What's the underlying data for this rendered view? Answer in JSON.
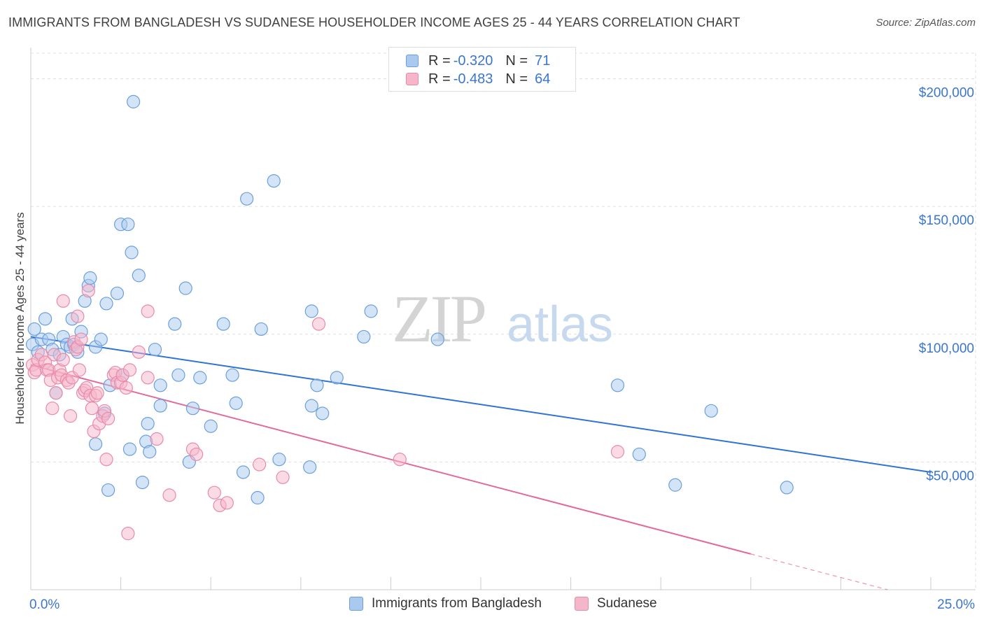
{
  "title": "IMMIGRANTS FROM BANGLADESH VS SUDANESE HOUSEHOLDER INCOME AGES 25 - 44 YEARS CORRELATION CHART",
  "source": "Source: ZipAtlas.com",
  "watermark": {
    "zip": "ZIP",
    "atlas": "atlas"
  },
  "colors": {
    "blue_fill": "#a9c9ef",
    "blue_stroke": "#6b9fdc",
    "blue_line": "#2f73d6",
    "pink_fill": "#f5b6ca",
    "pink_stroke": "#e98aab",
    "pink_line": "#e2699a",
    "tick_text": "#3a76d0",
    "grid": "#e0e0e0"
  },
  "legend_top": [
    {
      "r_label": "R =",
      "r_value": "-0.320",
      "n_label": "N =",
      "n_value": "71"
    },
    {
      "r_label": "R =",
      "r_value": "-0.483",
      "n_label": "N =",
      "n_value": "64"
    }
  ],
  "legend_bottom": [
    "Immigrants from Bangladesh",
    "Sudanese"
  ],
  "chart_data": {
    "type": "scatter",
    "title": "IMMIGRANTS FROM BANGLADESH VS SUDANESE HOUSEHOLDER INCOME AGES 25 - 44 YEARS CORRELATION CHART",
    "xlabel": "",
    "ylabel": "Householder Income Ages 25 - 44 years",
    "xlim": [
      0,
      25.0
    ],
    "ylim": [
      0,
      210000
    ],
    "x_tick_labels": [
      "0.0%",
      "25.0%"
    ],
    "y_ticks": [
      50000,
      100000,
      150000,
      200000
    ],
    "y_tick_labels": [
      "$50,000",
      "$100,000",
      "$150,000",
      "$200,000"
    ],
    "grid": true,
    "legend_position": "top-center",
    "series": [
      {
        "name": "Immigrants from Bangladesh",
        "r": -0.32,
        "n": 71,
        "trend": {
          "x": [
            0,
            25.0
          ],
          "y": [
            99000,
            46000
          ]
        },
        "points": [
          [
            0.05,
            96000
          ],
          [
            0.1,
            102000
          ],
          [
            0.2,
            93000
          ],
          [
            0.3,
            98000
          ],
          [
            0.4,
            106000
          ],
          [
            0.5,
            98000
          ],
          [
            0.6,
            94000
          ],
          [
            0.7,
            77000
          ],
          [
            0.8,
            92000
          ],
          [
            0.9,
            99000
          ],
          [
            1.0,
            96000
          ],
          [
            1.1,
            95000
          ],
          [
            1.15,
            106000
          ],
          [
            1.2,
            96000
          ],
          [
            1.3,
            93000
          ],
          [
            1.4,
            101000
          ],
          [
            1.5,
            113000
          ],
          [
            1.6,
            119000
          ],
          [
            1.65,
            122000
          ],
          [
            1.8,
            95000
          ],
          [
            1.8,
            57000
          ],
          [
            1.95,
            98000
          ],
          [
            2.05,
            69000
          ],
          [
            2.1,
            112000
          ],
          [
            2.15,
            39000
          ],
          [
            2.2,
            80000
          ],
          [
            2.4,
            116000
          ],
          [
            2.5,
            143000
          ],
          [
            2.55,
            84000
          ],
          [
            2.7,
            143000
          ],
          [
            2.75,
            55000
          ],
          [
            2.8,
            132000
          ],
          [
            2.85,
            191000
          ],
          [
            3.0,
            123000
          ],
          [
            3.1,
            42000
          ],
          [
            3.2,
            58000
          ],
          [
            3.25,
            65000
          ],
          [
            3.3,
            54000
          ],
          [
            3.45,
            94000
          ],
          [
            3.6,
            80000
          ],
          [
            3.6,
            72000
          ],
          [
            4.0,
            104000
          ],
          [
            4.1,
            84000
          ],
          [
            4.3,
            118000
          ],
          [
            4.4,
            50000
          ],
          [
            4.5,
            71000
          ],
          [
            4.7,
            83000
          ],
          [
            5.0,
            64000
          ],
          [
            5.35,
            104000
          ],
          [
            5.6,
            84000
          ],
          [
            5.7,
            73000
          ],
          [
            5.9,
            46000
          ],
          [
            6.0,
            153000
          ],
          [
            6.3,
            36000
          ],
          [
            6.4,
            102000
          ],
          [
            6.75,
            160000
          ],
          [
            6.9,
            51000
          ],
          [
            7.75,
            48000
          ],
          [
            7.8,
            109000
          ],
          [
            7.8,
            72000
          ],
          [
            7.95,
            80000
          ],
          [
            8.1,
            69000
          ],
          [
            8.5,
            83000
          ],
          [
            9.25,
            99000
          ],
          [
            9.45,
            109000
          ],
          [
            11.3,
            98000
          ],
          [
            16.3,
            80000
          ],
          [
            16.9,
            53000
          ],
          [
            17.9,
            41000
          ],
          [
            18.9,
            70000
          ],
          [
            21.0,
            40000
          ]
        ]
      },
      {
        "name": "Sudanese",
        "r": -0.483,
        "n": 64,
        "trend": {
          "x": [
            0,
            20.0
          ],
          "y": [
            88000,
            14000
          ]
        },
        "trend_dashed": {
          "x": [
            20.0,
            23.8
          ],
          "y": [
            14000,
            0
          ]
        },
        "points": [
          [
            0.05,
            88000
          ],
          [
            0.1,
            85000
          ],
          [
            0.15,
            86000
          ],
          [
            0.2,
            90000
          ],
          [
            0.3,
            92000
          ],
          [
            0.4,
            89000
          ],
          [
            0.45,
            86000
          ],
          [
            0.5,
            86000
          ],
          [
            0.55,
            82000
          ],
          [
            0.6,
            71000
          ],
          [
            0.65,
            92000
          ],
          [
            0.7,
            77000
          ],
          [
            0.75,
            83000
          ],
          [
            0.8,
            86000
          ],
          [
            0.85,
            84000
          ],
          [
            0.9,
            90000
          ],
          [
            0.9,
            113000
          ],
          [
            1.0,
            82000
          ],
          [
            1.05,
            81000
          ],
          [
            1.1,
            68000
          ],
          [
            1.15,
            83000
          ],
          [
            1.2,
            97000
          ],
          [
            1.25,
            94000
          ],
          [
            1.3,
            95000
          ],
          [
            1.3,
            107000
          ],
          [
            1.35,
            86000
          ],
          [
            1.4,
            98000
          ],
          [
            1.45,
            77000
          ],
          [
            1.5,
            78000
          ],
          [
            1.55,
            79000
          ],
          [
            1.6,
            117000
          ],
          [
            1.65,
            76000
          ],
          [
            1.7,
            71000
          ],
          [
            1.75,
            62000
          ],
          [
            1.8,
            76000
          ],
          [
            1.85,
            77000
          ],
          [
            1.9,
            65000
          ],
          [
            2.0,
            68000
          ],
          [
            2.05,
            70000
          ],
          [
            2.1,
            51000
          ],
          [
            2.15,
            67000
          ],
          [
            2.3,
            84000
          ],
          [
            2.35,
            85000
          ],
          [
            2.4,
            81000
          ],
          [
            2.5,
            81000
          ],
          [
            2.55,
            84000
          ],
          [
            2.65,
            79000
          ],
          [
            2.7,
            22000
          ],
          [
            2.75,
            86000
          ],
          [
            3.0,
            93000
          ],
          [
            3.25,
            83000
          ],
          [
            3.25,
            109000
          ],
          [
            3.5,
            59000
          ],
          [
            3.85,
            37000
          ],
          [
            4.5,
            55000
          ],
          [
            4.6,
            53000
          ],
          [
            5.1,
            38000
          ],
          [
            5.25,
            33000
          ],
          [
            5.45,
            34000
          ],
          [
            6.35,
            49000
          ],
          [
            7.0,
            44000
          ],
          [
            8.0,
            104000
          ],
          [
            10.25,
            51000
          ],
          [
            16.3,
            54000
          ]
        ]
      }
    ]
  }
}
